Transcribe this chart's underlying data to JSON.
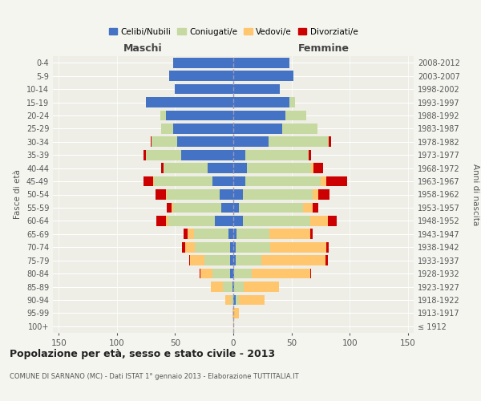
{
  "age_groups": [
    "100+",
    "95-99",
    "90-94",
    "85-89",
    "80-84",
    "75-79",
    "70-74",
    "65-69",
    "60-64",
    "55-59",
    "50-54",
    "45-49",
    "40-44",
    "35-39",
    "30-34",
    "25-29",
    "20-24",
    "15-19",
    "10-14",
    "5-9",
    "0-4"
  ],
  "birth_years": [
    "≤ 1912",
    "1913-1917",
    "1918-1922",
    "1923-1927",
    "1928-1932",
    "1933-1937",
    "1938-1942",
    "1943-1947",
    "1948-1952",
    "1953-1957",
    "1958-1962",
    "1963-1967",
    "1968-1972",
    "1973-1977",
    "1978-1982",
    "1983-1987",
    "1988-1992",
    "1993-1997",
    "1998-2002",
    "2003-2007",
    "2008-2012"
  ],
  "males": {
    "celibi": [
      0,
      0,
      0,
      1,
      3,
      3,
      3,
      4,
      16,
      10,
      12,
      18,
      22,
      45,
      48,
      52,
      58,
      75,
      50,
      55,
      52
    ],
    "coniugati": [
      0,
      0,
      2,
      8,
      15,
      22,
      30,
      30,
      40,
      42,
      45,
      50,
      38,
      30,
      22,
      10,
      5,
      0,
      0,
      0,
      0
    ],
    "vedovi": [
      0,
      1,
      5,
      10,
      10,
      12,
      8,
      5,
      2,
      1,
      1,
      1,
      0,
      0,
      0,
      0,
      0,
      0,
      0,
      0,
      0
    ],
    "divorziati": [
      0,
      0,
      0,
      0,
      1,
      1,
      3,
      4,
      8,
      4,
      9,
      8,
      2,
      2,
      1,
      0,
      0,
      0,
      0,
      0,
      0
    ]
  },
  "females": {
    "nubili": [
      0,
      0,
      2,
      1,
      1,
      2,
      2,
      3,
      8,
      5,
      8,
      10,
      12,
      10,
      30,
      42,
      45,
      48,
      40,
      52,
      48
    ],
    "coniugate": [
      0,
      0,
      3,
      8,
      15,
      22,
      30,
      28,
      58,
      55,
      60,
      65,
      55,
      55,
      52,
      30,
      18,
      5,
      0,
      0,
      0
    ],
    "vedove": [
      1,
      5,
      22,
      30,
      50,
      55,
      48,
      35,
      15,
      8,
      5,
      5,
      2,
      0,
      0,
      0,
      0,
      0,
      0,
      0,
      0
    ],
    "divorziate": [
      0,
      0,
      0,
      0,
      1,
      2,
      2,
      2,
      8,
      5,
      10,
      18,
      8,
      2,
      2,
      0,
      0,
      0,
      0,
      0,
      0
    ]
  },
  "colors": {
    "celibi": "#4472c4",
    "coniugati": "#c5d9a0",
    "vedovi": "#ffc66e",
    "divorziati": "#cc0000"
  },
  "xlim": 155,
  "title": "Popolazione per età, sesso e stato civile - 2013",
  "subtitle": "COMUNE DI SARNANO (MC) - Dati ISTAT 1° gennaio 2013 - Elaborazione TUTTITALIA.IT",
  "ylabel_left": "Fasce di età",
  "ylabel_right": "Anni di nascita",
  "xlabel_maschi": "Maschi",
  "xlabel_femmine": "Femmine",
  "bg_color": "#f5f5f0",
  "plot_bg": "#eeeee6",
  "legend_labels": [
    "Celibi/Nubili",
    "Coniugati/e",
    "Vedovi/e",
    "Divorziati/e"
  ]
}
